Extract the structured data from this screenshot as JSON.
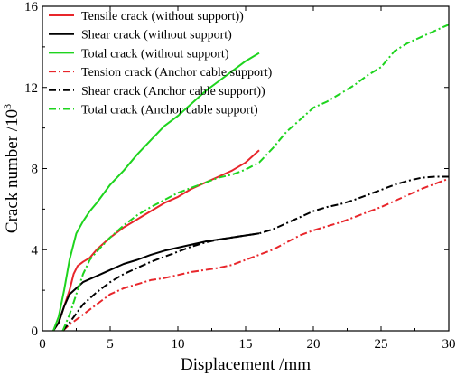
{
  "chart_data": {
    "type": "line",
    "xlabel": "Displacement /mm",
    "ylabel": "Crack number /10",
    "ylabel_superscript": "3",
    "xlim": [
      0,
      30
    ],
    "ylim": [
      0,
      16
    ],
    "x_ticks": [
      "0",
      "5",
      "10",
      "15",
      "20",
      "25",
      "30"
    ],
    "y_ticks": [
      "0",
      "4",
      "8",
      "12",
      "16"
    ],
    "grid": false,
    "legend_position": "top-left",
    "series": [
      {
        "name": "Tensile crack (without support))",
        "color": "#e8262b",
        "dash": "solid",
        "x": [
          0.8,
          1.2,
          1.6,
          2.0,
          2.3,
          2.6,
          3.0,
          3.5,
          4.0,
          5.0,
          6.0,
          7.0,
          8.0,
          9.0,
          10.0,
          11.0,
          12.0,
          13.0,
          14.0,
          15.0,
          16.0
        ],
        "y": [
          0,
          0.4,
          1.2,
          2.0,
          2.8,
          3.2,
          3.4,
          3.6,
          4.0,
          4.6,
          5.1,
          5.5,
          5.9,
          6.3,
          6.6,
          7.0,
          7.3,
          7.6,
          7.9,
          8.3,
          8.9
        ]
      },
      {
        "name": "Shear crack (without support)",
        "color": "#000000",
        "dash": "solid",
        "x": [
          0.8,
          1.2,
          1.6,
          2.0,
          2.5,
          3.0,
          4.0,
          5.0,
          6.0,
          7.0,
          8.0,
          9.0,
          10.0,
          11.0,
          12.0,
          13.0,
          14.0,
          15.0,
          16.0
        ],
        "y": [
          0,
          0.4,
          1.2,
          1.8,
          2.1,
          2.4,
          2.7,
          3.0,
          3.3,
          3.5,
          3.75,
          3.95,
          4.1,
          4.25,
          4.4,
          4.5,
          4.6,
          4.7,
          4.8
        ]
      },
      {
        "name": "Total crack (without support)",
        "color": "#1ed41e",
        "dash": "solid",
        "x": [
          0.8,
          1.2,
          1.6,
          2.0,
          2.5,
          3.0,
          3.5,
          4.0,
          5.0,
          6.0,
          7.0,
          8.0,
          9.0,
          10.0,
          11.0,
          12.0,
          13.0,
          14.0,
          15.0,
          16.0
        ],
        "y": [
          0,
          0.7,
          2.0,
          3.5,
          4.8,
          5.4,
          5.9,
          6.3,
          7.2,
          7.9,
          8.7,
          9.4,
          10.1,
          10.6,
          11.2,
          11.8,
          12.3,
          12.8,
          13.3,
          13.7
        ]
      },
      {
        "name": "Tension crack (Anchor cable support)",
        "color": "#e8262b",
        "dash": "dashdot",
        "x": [
          1.5,
          2.0,
          3.0,
          4.0,
          5.0,
          6.0,
          7.0,
          8.0,
          9.0,
          10.0,
          11.0,
          12.0,
          13.0,
          14.0,
          15.0,
          16.0,
          17.0,
          18.0,
          19.0,
          20.0,
          21.0,
          22.0,
          23.0,
          24.0,
          25.0,
          26.0,
          27.0,
          28.0,
          29.0,
          30.0
        ],
        "y": [
          0,
          0.3,
          0.8,
          1.3,
          1.8,
          2.1,
          2.3,
          2.5,
          2.6,
          2.75,
          2.9,
          3.0,
          3.1,
          3.25,
          3.5,
          3.75,
          4.0,
          4.35,
          4.7,
          4.95,
          5.15,
          5.35,
          5.6,
          5.85,
          6.1,
          6.4,
          6.7,
          7.0,
          7.25,
          7.5
        ]
      },
      {
        "name": "Shear crack (Anchor cable support))",
        "color": "#000000",
        "dash": "dashdot",
        "x": [
          1.5,
          2.0,
          3.0,
          4.0,
          5.0,
          6.0,
          7.0,
          8.0,
          9.0,
          10.0,
          11.0,
          12.0,
          13.0,
          14.0,
          15.0,
          16.0,
          17.0,
          18.0,
          19.0,
          20.0,
          21.0,
          22.0,
          23.0,
          24.0,
          25.0,
          26.0,
          27.0,
          28.0,
          29.0,
          30.0
        ],
        "y": [
          0,
          0.4,
          1.3,
          1.9,
          2.4,
          2.8,
          3.1,
          3.4,
          3.65,
          3.9,
          4.15,
          4.35,
          4.5,
          4.6,
          4.7,
          4.8,
          5.0,
          5.3,
          5.6,
          5.9,
          6.1,
          6.25,
          6.45,
          6.7,
          6.95,
          7.2,
          7.4,
          7.55,
          7.6,
          7.6
        ]
      },
      {
        "name": "Total crack (Anchor cable support)",
        "color": "#1ed41e",
        "dash": "dashdot",
        "x": [
          1.5,
          2.0,
          2.5,
          3.0,
          3.5,
          4.0,
          5.0,
          6.0,
          7.0,
          8.0,
          9.0,
          10.0,
          11.0,
          12.0,
          13.0,
          14.0,
          15.0,
          16.0,
          17.0,
          18.0,
          19.0,
          20.0,
          21.0,
          22.0,
          23.0,
          24.0,
          25.0,
          26.0,
          27.0,
          28.0,
          29.0,
          30.0
        ],
        "y": [
          0,
          0.8,
          1.8,
          2.8,
          3.5,
          3.9,
          4.6,
          5.2,
          5.7,
          6.1,
          6.45,
          6.8,
          7.05,
          7.3,
          7.55,
          7.7,
          7.95,
          8.3,
          9.0,
          9.8,
          10.4,
          11.0,
          11.3,
          11.7,
          12.1,
          12.6,
          13.0,
          13.8,
          14.2,
          14.5,
          14.8,
          15.1
        ]
      }
    ]
  }
}
